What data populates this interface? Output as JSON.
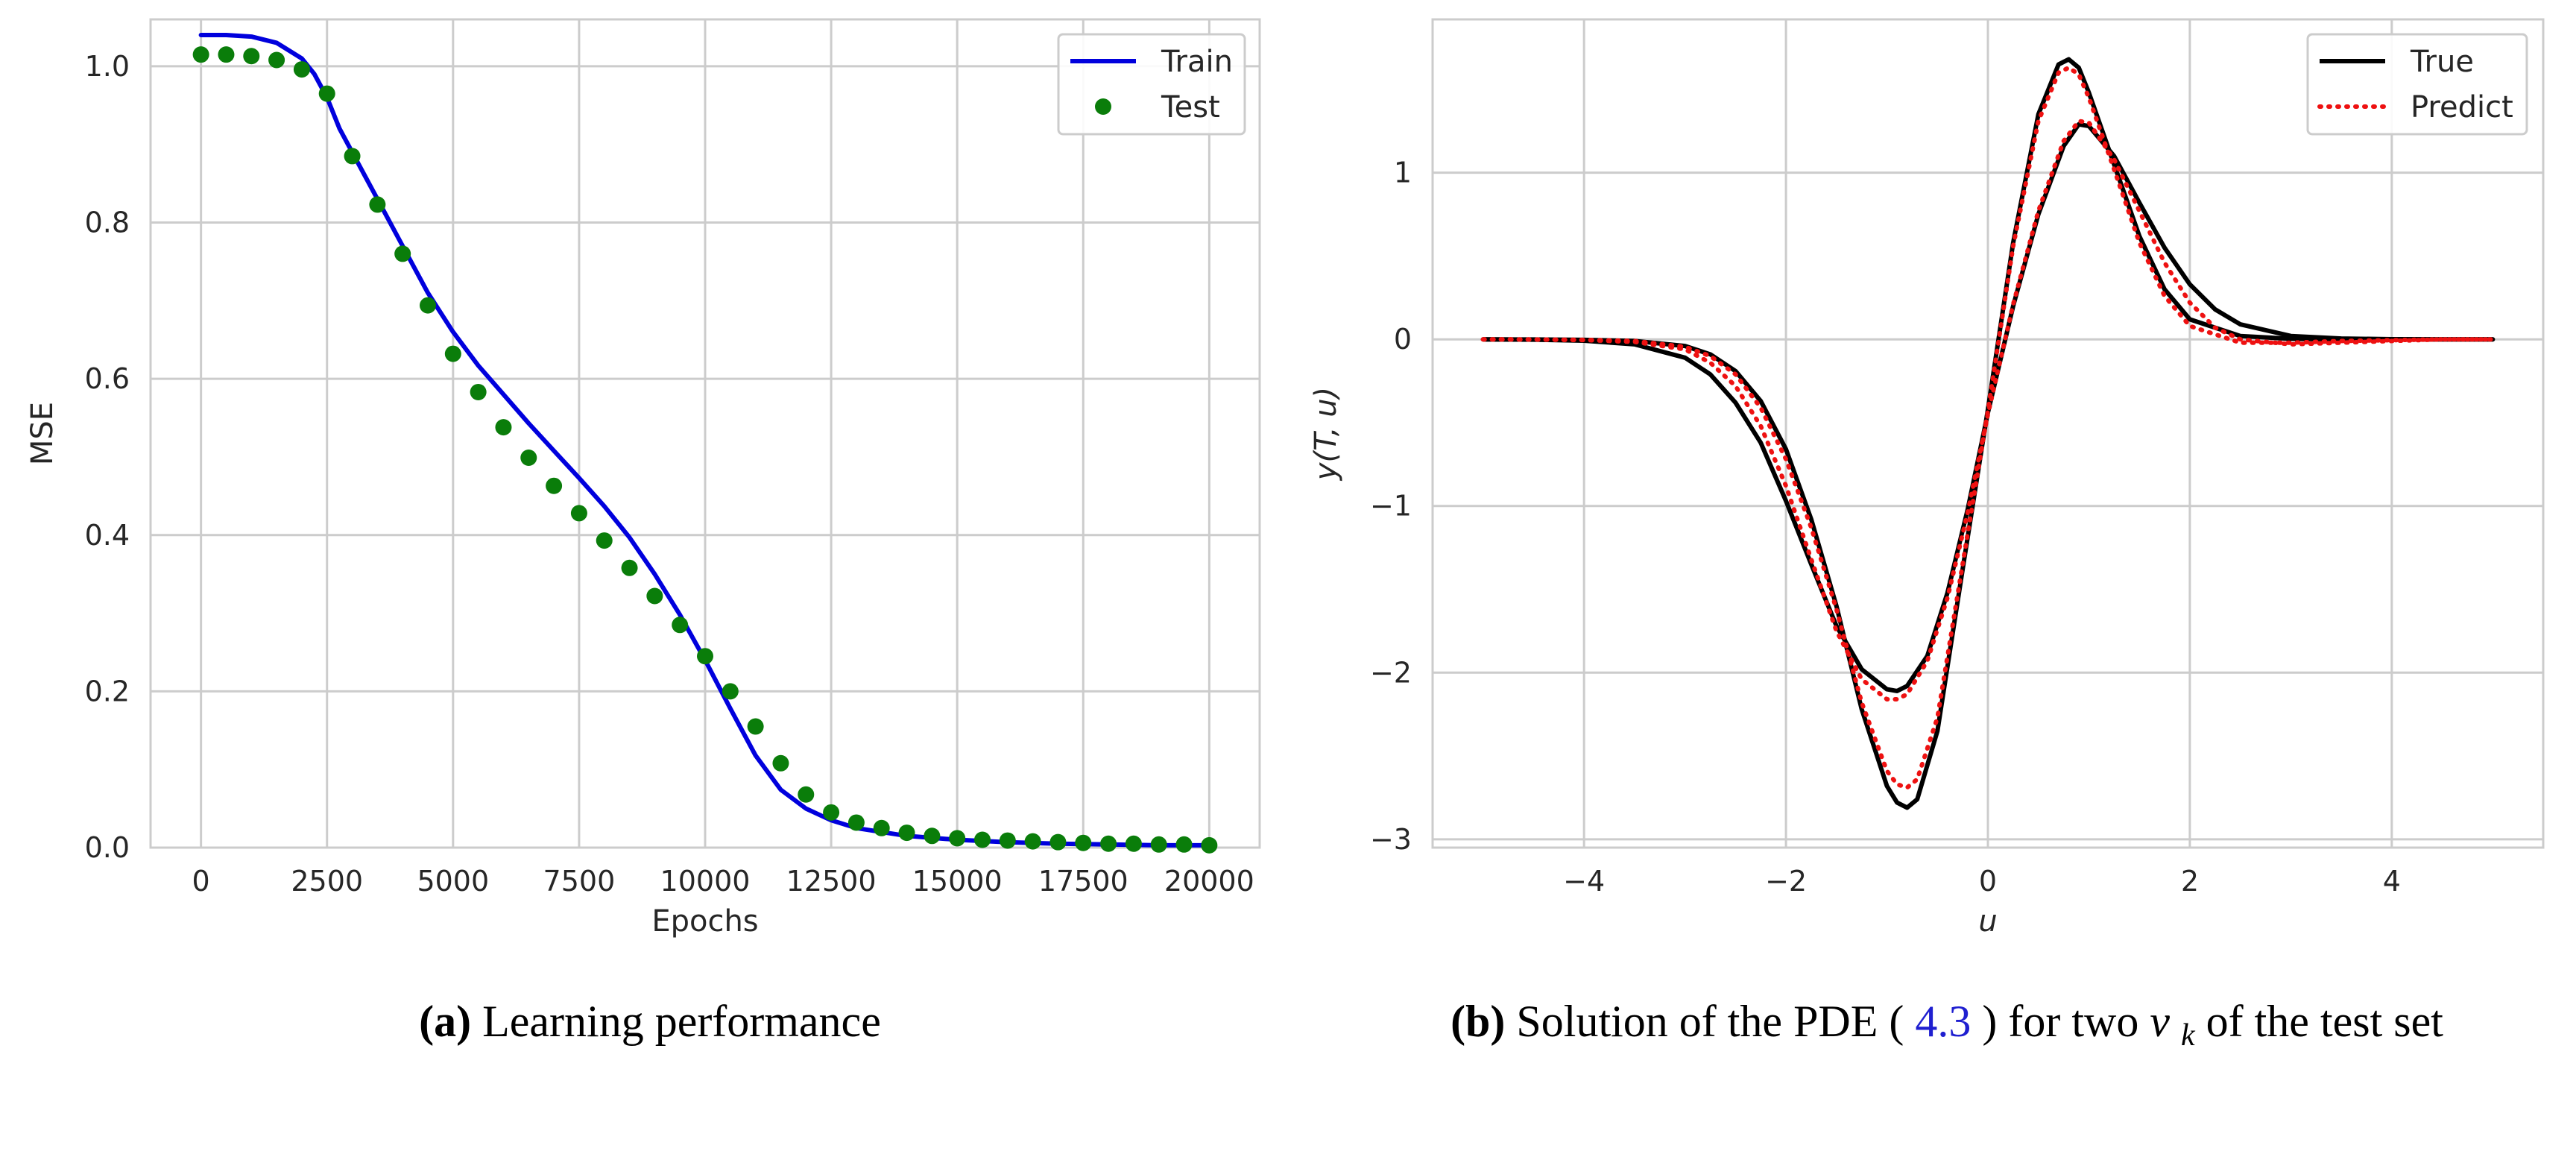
{
  "captions": {
    "a": {
      "label": "(a)",
      "text": "Learning performance"
    },
    "b": {
      "label": "(b)",
      "pre": "Solution of the PDE (",
      "ref": "4.3",
      "post": ") for two ",
      "nu": "ν",
      "nu_sub": "k",
      "tail": " of the test set"
    }
  },
  "chart_data": [
    {
      "type": "line",
      "title": "",
      "xlabel": "Epochs",
      "ylabel": "MSE",
      "xlim": [
        -1000,
        21000
      ],
      "ylim": [
        0.0,
        1.06
      ],
      "xticks": [
        0,
        2500,
        5000,
        7500,
        10000,
        12500,
        15000,
        17500,
        20000
      ],
      "xtick_labels": [
        "0",
        "2500",
        "5000",
        "7500",
        "10000",
        "12500",
        "15000",
        "17500",
        "20000"
      ],
      "yticks": [
        0.0,
        0.2,
        0.4,
        0.6,
        0.8,
        1.0
      ],
      "ytick_labels": [
        "0.0",
        "0.2",
        "0.4",
        "0.6",
        "0.8",
        "1.0"
      ],
      "grid": true,
      "legend": "top-right",
      "series": [
        {
          "name": "Train",
          "kind": "line",
          "color": "#0000dd",
          "x": [
            0,
            500,
            1000,
            1500,
            2000,
            2250,
            2500,
            2750,
            3000,
            3500,
            4000,
            4500,
            5000,
            5500,
            6000,
            6500,
            7000,
            7500,
            8000,
            8500,
            9000,
            9500,
            10000,
            10500,
            11000,
            11500,
            12000,
            12500,
            13000,
            14000,
            15000,
            16000,
            17000,
            18000,
            19000,
            20000
          ],
          "y": [
            1.04,
            1.04,
            1.038,
            1.03,
            1.01,
            0.99,
            0.96,
            0.92,
            0.89,
            0.83,
            0.77,
            0.71,
            0.66,
            0.617,
            0.58,
            0.543,
            0.508,
            0.473,
            0.437,
            0.397,
            0.35,
            0.298,
            0.24,
            0.178,
            0.118,
            0.074,
            0.05,
            0.035,
            0.025,
            0.015,
            0.01,
            0.007,
            0.005,
            0.004,
            0.003,
            0.003
          ]
        },
        {
          "name": "Test",
          "kind": "scatter",
          "color": "#0a7d0a",
          "x": [
            0,
            500,
            1000,
            1500,
            2000,
            2500,
            3000,
            3500,
            4000,
            4500,
            5000,
            5500,
            6000,
            6500,
            7000,
            7500,
            8000,
            8500,
            9000,
            9500,
            10000,
            10500,
            11000,
            11500,
            12000,
            12500,
            13000,
            13500,
            14000,
            14500,
            15000,
            15500,
            16000,
            16500,
            17000,
            17500,
            18000,
            18500,
            19000,
            19500,
            20000
          ],
          "y": [
            1.015,
            1.015,
            1.013,
            1.008,
            0.996,
            0.965,
            0.885,
            0.823,
            0.76,
            0.694,
            0.632,
            0.583,
            0.538,
            0.499,
            0.463,
            0.428,
            0.393,
            0.358,
            0.322,
            0.285,
            0.245,
            0.2,
            0.155,
            0.108,
            0.068,
            0.045,
            0.032,
            0.025,
            0.019,
            0.015,
            0.012,
            0.01,
            0.009,
            0.008,
            0.007,
            0.006,
            0.005,
            0.005,
            0.004,
            0.004,
            0.003
          ]
        }
      ]
    },
    {
      "type": "line",
      "title": "",
      "xlabel": "u",
      "ylabel": "y(T, u)",
      "xlim": [
        -5.5,
        5.5
      ],
      "ylim": [
        -3.05,
        1.92
      ],
      "xticks": [
        -4,
        -2,
        0,
        2,
        4
      ],
      "xtick_labels": [
        "−4",
        "−2",
        "0",
        "2",
        "4"
      ],
      "yticks": [
        -3,
        -2,
        -1,
        0,
        1
      ],
      "ytick_labels": [
        "−3",
        "−2",
        "−1",
        "0",
        "1"
      ],
      "grid": true,
      "legend": "top-right",
      "series": [
        {
          "name": "True",
          "kind": "line",
          "color": "#000000",
          "x": [
            -5,
            -4.5,
            -4,
            -3.5,
            -3,
            -2.75,
            -2.5,
            -2.25,
            -2,
            -1.75,
            -1.5,
            -1.25,
            -1,
            -0.9,
            -0.8,
            -0.7,
            -0.5,
            -0.25,
            0,
            0.25,
            0.5,
            0.7,
            0.8,
            0.9,
            1,
            1.25,
            1.5,
            1.75,
            2,
            2.5,
            3,
            3.5,
            4,
            4.5,
            5
          ],
          "y": [
            0,
            -0.001,
            -0.003,
            -0.01,
            -0.04,
            -0.09,
            -0.19,
            -0.37,
            -0.66,
            -1.08,
            -1.6,
            -2.22,
            -2.68,
            -2.78,
            -2.81,
            -2.76,
            -2.35,
            -1.38,
            -0.42,
            0.58,
            1.35,
            1.65,
            1.68,
            1.63,
            1.48,
            1.05,
            0.62,
            0.3,
            0.12,
            0.02,
            0.003,
            0,
            0,
            0,
            0
          ]
        },
        {
          "name": "",
          "kind": "line",
          "color": "#000000",
          "x": [
            -5,
            -4.5,
            -4,
            -3.5,
            -3,
            -2.75,
            -2.5,
            -2.25,
            -2,
            -1.75,
            -1.5,
            -1.25,
            -1,
            -0.9,
            -0.8,
            -0.6,
            -0.4,
            -0.2,
            0,
            0.25,
            0.5,
            0.75,
            0.9,
            1,
            1.25,
            1.5,
            1.75,
            2,
            2.25,
            2.5,
            3,
            3.5,
            4,
            4.5,
            5
          ],
          "y": [
            0,
            -0.002,
            -0.008,
            -0.03,
            -0.11,
            -0.21,
            -0.38,
            -0.62,
            -0.97,
            -1.35,
            -1.72,
            -1.98,
            -2.1,
            -2.11,
            -2.08,
            -1.9,
            -1.52,
            -1.02,
            -0.44,
            0.2,
            0.75,
            1.16,
            1.29,
            1.28,
            1.1,
            0.82,
            0.55,
            0.33,
            0.18,
            0.09,
            0.02,
            0.005,
            0.001,
            0,
            0
          ]
        },
        {
          "name": "Predict",
          "kind": "dotted",
          "color": "#ee1111",
          "x": [
            -5,
            -4.5,
            -4,
            -3.5,
            -3,
            -2.75,
            -2.5,
            -2.25,
            -2,
            -1.75,
            -1.5,
            -1.25,
            -1,
            -0.9,
            -0.8,
            -0.7,
            -0.5,
            -0.25,
            0,
            0.25,
            0.5,
            0.7,
            0.8,
            0.9,
            1,
            1.25,
            1.5,
            1.75,
            2,
            2.5,
            3,
            3.5,
            4,
            4.5,
            5
          ],
          "y": [
            0,
            -0.001,
            -0.003,
            -0.01,
            -0.045,
            -0.1,
            -0.21,
            -0.41,
            -0.72,
            -1.13,
            -1.62,
            -2.18,
            -2.59,
            -2.67,
            -2.69,
            -2.64,
            -2.27,
            -1.35,
            -0.43,
            0.56,
            1.31,
            1.6,
            1.63,
            1.59,
            1.45,
            1.02,
            0.58,
            0.26,
            0.08,
            -0.02,
            -0.02,
            -0.01,
            -0.005,
            0,
            0
          ]
        },
        {
          "name": "",
          "kind": "dotted",
          "color": "#ee1111",
          "x": [
            -5,
            -4.5,
            -4,
            -3.5,
            -3,
            -2.75,
            -2.5,
            -2.25,
            -2,
            -1.75,
            -1.5,
            -1.25,
            -1,
            -0.9,
            -0.8,
            -0.6,
            -0.4,
            -0.2,
            0,
            0.25,
            0.5,
            0.75,
            0.9,
            1,
            1.25,
            1.5,
            1.75,
            2,
            2.25,
            2.5,
            3,
            3.5,
            4,
            4.5,
            5
          ],
          "y": [
            0,
            -0.001,
            -0.004,
            -0.015,
            -0.06,
            -0.14,
            -0.28,
            -0.52,
            -0.88,
            -1.32,
            -1.75,
            -2.04,
            -2.16,
            -2.16,
            -2.13,
            -1.93,
            -1.55,
            -1.04,
            -0.45,
            0.21,
            0.77,
            1.19,
            1.31,
            1.3,
            1.08,
            0.77,
            0.46,
            0.22,
            0.07,
            0,
            -0.03,
            -0.02,
            -0.01,
            0,
            0
          ]
        }
      ]
    }
  ]
}
